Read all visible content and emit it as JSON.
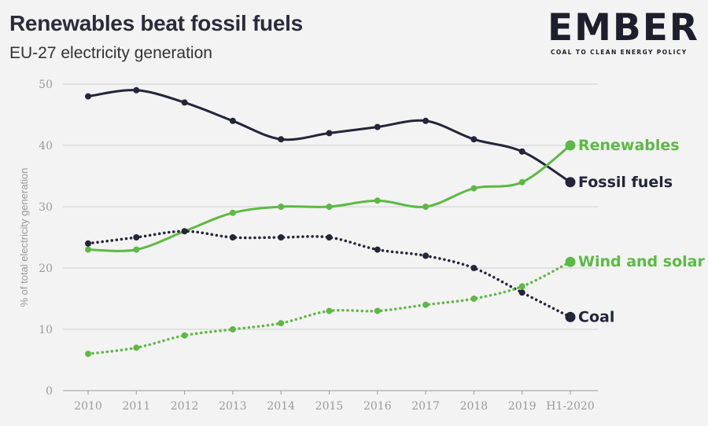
{
  "header": {
    "title": "Renewables beat fossil fuels",
    "subtitle": "EU-27 electricity generation"
  },
  "logo": {
    "name": "EMBER",
    "tagline": "COAL TO CLEAN ENERGY POLICY"
  },
  "colors": {
    "dark": "#24243a",
    "green": "#5db944",
    "grid": "#cfcfcf",
    "axis": "#9a9a9a",
    "background": "#f3f3f3"
  },
  "chart_data": {
    "type": "line",
    "xlabel": "",
    "ylabel": "% of total electricity generation",
    "ylim": [
      0,
      50
    ],
    "yticks": [
      0,
      10,
      20,
      30,
      40,
      50
    ],
    "categories": [
      "2010",
      "2011",
      "2012",
      "2013",
      "2014",
      "2015",
      "2016",
      "2017",
      "2018",
      "2019",
      "H1-2020"
    ],
    "grid": true,
    "series": [
      {
        "name": "Fossil fuels",
        "color": "#24243a",
        "style": "solid",
        "values": [
          48,
          49,
          47,
          44,
          41,
          42,
          43,
          44,
          41,
          39,
          34
        ]
      },
      {
        "name": "Renewables",
        "color": "#5db944",
        "style": "solid",
        "values": [
          23,
          23,
          26,
          29,
          30,
          30,
          31,
          30,
          33,
          34,
          40
        ]
      },
      {
        "name": "Coal",
        "color": "#24243a",
        "style": "dotted",
        "values": [
          24,
          25,
          26,
          25,
          25,
          25,
          23,
          22,
          20,
          16,
          12
        ]
      },
      {
        "name": "Wind and solar",
        "color": "#5db944",
        "style": "dotted",
        "values": [
          6,
          7,
          9,
          10,
          11,
          13,
          13,
          14,
          15,
          17,
          21
        ]
      }
    ]
  }
}
